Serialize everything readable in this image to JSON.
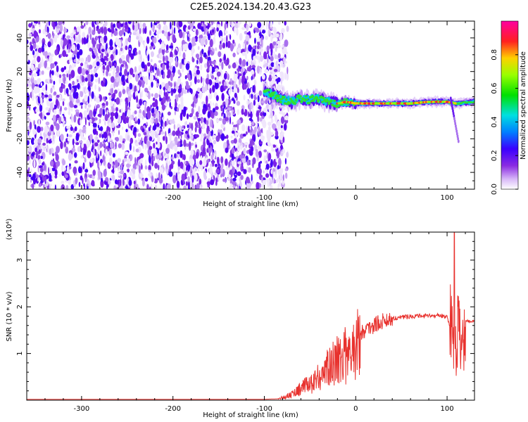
{
  "title": "C2E5.2024.134.20.43.G23",
  "chart_data": [
    {
      "type": "heatmap",
      "xlabel": "Height of straight line (km)",
      "ylabel": "Frequency (Hz)",
      "xlim": [
        -360,
        130
      ],
      "ylim": [
        -50,
        50
      ],
      "xticks": [
        -300,
        -200,
        -100,
        0,
        100
      ],
      "yticks": [
        -40,
        -20,
        0,
        20,
        40
      ],
      "colorbar": {
        "label": "Normalized spectral amplitude",
        "range": [
          0.0,
          1.0
        ],
        "ticks": [
          0.0,
          0.2,
          0.4,
          0.6,
          0.8
        ],
        "colormap": "white-purple-blue-cyan-green-yellow-red-magenta"
      },
      "noise_region_x": [
        -360,
        -85
      ],
      "signal_track": {
        "x": [
          -100,
          -90,
          -80,
          -70,
          -60,
          -50,
          -40,
          -30,
          -20,
          -10,
          0,
          20,
          40,
          60,
          80,
          90,
          100,
          110,
          130
        ],
        "frequency": [
          8,
          6,
          3,
          2,
          4,
          3,
          4,
          2,
          1,
          2,
          1,
          1,
          1,
          1,
          2,
          2,
          2,
          1,
          2
        ]
      },
      "grid": false
    },
    {
      "type": "line",
      "xlabel": "Height of straight line (km)",
      "ylabel": "SNR (10 * v/v)",
      "multiplier": "(x10⁴)",
      "xlim": [
        -360,
        130
      ],
      "ylim": [
        0,
        3.6
      ],
      "xticks": [
        -300,
        -200,
        -100,
        0,
        100
      ],
      "yticks": [
        1,
        2,
        3
      ],
      "series": [
        {
          "color": "#e8322e",
          "x": [
            -360,
            -300,
            -200,
            -120,
            -100,
            -85,
            -70,
            -60,
            -50,
            -40,
            -30,
            -25,
            -20,
            -15,
            -12,
            -10,
            -5,
            0,
            10,
            20,
            30,
            40,
            50,
            60,
            70,
            80,
            90,
            95,
            100,
            103,
            105,
            107,
            108,
            110,
            112,
            115,
            120,
            130
          ],
          "y": [
            0.02,
            0.02,
            0.02,
            0.02,
            0.02,
            0.03,
            0.15,
            0.3,
            0.4,
            0.6,
            0.8,
            0.9,
            1.2,
            1.0,
            1.4,
            0.9,
            1.2,
            1.4,
            1.5,
            1.6,
            1.7,
            1.75,
            1.78,
            1.8,
            1.8,
            1.8,
            1.82,
            1.8,
            1.8,
            1.6,
            1.9,
            1.0,
            3.5,
            0.5,
            2.0,
            1.0,
            1.7,
            1.68
          ]
        }
      ],
      "grid": false
    }
  ]
}
